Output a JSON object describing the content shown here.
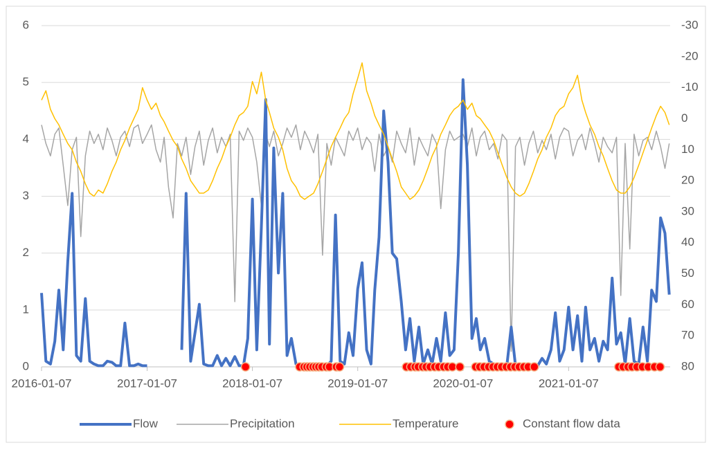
{
  "chart_data": {
    "type": "line",
    "x": [
      "2016-01-07",
      "2016-01-22",
      "2016-02-07",
      "2016-02-22",
      "2016-03-07",
      "2016-03-22",
      "2016-04-07",
      "2016-04-22",
      "2016-05-07",
      "2016-05-22",
      "2016-06-07",
      "2016-06-22",
      "2016-07-07",
      "2016-07-22",
      "2016-08-07",
      "2016-08-22",
      "2016-09-07",
      "2016-09-22",
      "2016-10-07",
      "2016-10-22",
      "2016-11-07",
      "2016-11-22",
      "2016-12-07",
      "2016-12-22",
      "2017-01-07",
      "2017-01-22",
      "2017-02-07",
      "2017-02-22",
      "2017-03-07",
      "2017-03-22",
      "2017-04-07",
      "2017-04-22",
      "2017-05-07",
      "2017-05-22",
      "2017-06-07",
      "2017-06-22",
      "2017-07-07",
      "2017-07-22",
      "2017-08-07",
      "2017-08-22",
      "2017-09-07",
      "2017-09-22",
      "2017-10-07",
      "2017-10-22",
      "2017-11-07",
      "2017-11-22",
      "2017-12-07",
      "2017-12-22",
      "2018-01-07",
      "2018-01-22",
      "2018-02-07",
      "2018-02-22",
      "2018-03-07",
      "2018-03-22",
      "2018-04-07",
      "2018-04-22",
      "2018-05-07",
      "2018-05-22",
      "2018-06-07",
      "2018-06-22",
      "2018-07-07",
      "2018-07-22",
      "2018-08-07",
      "2018-08-22",
      "2018-09-07",
      "2018-09-22",
      "2018-10-07",
      "2018-10-22",
      "2018-11-07",
      "2018-11-22",
      "2018-12-07",
      "2018-12-22",
      "2019-01-07",
      "2019-01-22",
      "2019-02-07",
      "2019-02-22",
      "2019-03-07",
      "2019-03-22",
      "2019-04-07",
      "2019-04-22",
      "2019-05-07",
      "2019-05-22",
      "2019-06-07",
      "2019-06-22",
      "2019-07-07",
      "2019-07-22",
      "2019-08-07",
      "2019-08-22",
      "2019-09-07",
      "2019-09-22",
      "2019-10-07",
      "2019-10-22",
      "2019-11-07",
      "2019-11-22",
      "2019-12-07",
      "2019-12-22",
      "2020-01-07",
      "2020-01-22",
      "2020-02-07",
      "2020-02-22",
      "2020-03-07",
      "2020-03-22",
      "2020-04-07",
      "2020-04-22",
      "2020-05-07",
      "2020-05-22",
      "2020-06-07",
      "2020-06-22",
      "2020-07-07",
      "2020-07-22",
      "2020-08-07",
      "2020-08-22",
      "2020-09-07",
      "2020-09-22",
      "2020-10-07",
      "2020-10-22",
      "2020-11-07",
      "2020-11-22",
      "2020-12-07",
      "2020-12-22",
      "2021-01-07",
      "2021-01-22",
      "2021-02-07",
      "2021-02-22",
      "2021-03-07",
      "2021-03-22",
      "2021-04-07",
      "2021-04-22",
      "2021-05-07",
      "2021-05-22",
      "2021-06-07",
      "2021-06-22",
      "2021-07-07",
      "2021-07-22",
      "2021-08-07",
      "2021-08-22",
      "2021-09-07",
      "2021-09-22",
      "2021-10-07",
      "2021-10-22",
      "2021-11-07",
      "2021-11-22",
      "2021-12-07",
      "2021-12-22"
    ],
    "series": [
      {
        "name": "Flow",
        "color": "#4472c4",
        "width": 4,
        "values": [
          1.3,
          0.1,
          0.05,
          0.45,
          1.35,
          0.3,
          1.85,
          3.05,
          0.2,
          0.1,
          1.2,
          0.1,
          0.05,
          0.02,
          0.02,
          0.1,
          0.08,
          0.02,
          0.02,
          0.77,
          0.02,
          0.02,
          0.05,
          0.02,
          0.02,
          null,
          null,
          null,
          null,
          null,
          null,
          null,
          0.3,
          3.05,
          0.1,
          0.6,
          1.1,
          0.05,
          0.02,
          0.02,
          0.2,
          0.02,
          0.15,
          0.02,
          0.18,
          0.02,
          0.02,
          0.5,
          2.95,
          0.3,
          2.45,
          4.7,
          0.4,
          3.85,
          1.65,
          3.05,
          0.2,
          0.5,
          0.05,
          0.02,
          0.02,
          0.02,
          0.02,
          0.02,
          0.02,
          0.02,
          0.1,
          2.67,
          0.1,
          0.05,
          0.6,
          0.2,
          1.37,
          1.83,
          0.3,
          0.05,
          1.35,
          2.28,
          4.5,
          3.6,
          2.0,
          1.9,
          1.15,
          0.3,
          0.85,
          0.1,
          0.7,
          0.05,
          0.3,
          0.05,
          0.5,
          0.1,
          0.95,
          0.2,
          0.3,
          2.0,
          5.05,
          3.55,
          0.5,
          0.85,
          0.3,
          0.5,
          0.1,
          0.05,
          0.02,
          0.05,
          0.02,
          0.7,
          0.02,
          0.02,
          0.02,
          0.02,
          0.05,
          0.02,
          0.15,
          0.05,
          0.3,
          0.95,
          0.1,
          0.3,
          1.05,
          0.3,
          0.9,
          0.1,
          1.05,
          0.3,
          0.5,
          0.1,
          0.45,
          0.3,
          1.56,
          0.4,
          0.6,
          0.05,
          0.85,
          0.1,
          0.05,
          0.7,
          0.1,
          1.35,
          1.15,
          2.62,
          2.35,
          1.27
        ]
      },
      {
        "name": "Precipitation",
        "color": "#a5a5a5",
        "width": 1.5,
        "axis": "y2",
        "values": [
          2,
          8,
          12,
          5,
          3,
          15,
          28,
          10,
          6,
          38,
          12,
          4,
          8,
          5,
          10,
          3,
          7,
          12,
          6,
          4,
          9,
          3,
          2,
          8,
          5,
          2,
          10,
          14,
          6,
          22,
          32,
          8,
          12,
          6,
          18,
          9,
          4,
          15,
          7,
          3,
          11,
          6,
          9,
          5,
          59,
          4,
          7,
          3,
          6,
          14,
          28,
          5,
          9,
          4,
          12,
          8,
          3,
          6,
          2,
          10,
          4,
          7,
          11,
          5,
          44,
          8,
          15,
          6,
          9,
          12,
          4,
          7,
          3,
          10,
          6,
          8,
          17,
          5,
          12,
          9,
          14,
          4,
          8,
          11,
          3,
          15,
          6,
          9,
          12,
          5,
          8,
          29,
          10,
          4,
          7,
          6,
          5,
          9,
          3,
          12,
          6,
          4,
          10,
          8,
          13,
          5,
          7,
          75,
          9,
          6,
          15,
          8,
          4,
          11,
          7,
          10,
          5,
          13,
          6,
          3,
          4,
          12,
          7,
          5,
          10,
          3,
          8,
          14,
          6,
          9,
          11,
          6,
          57,
          8,
          42,
          5,
          12,
          7,
          6,
          10,
          4,
          9,
          16,
          8
        ]
      },
      {
        "name": "Temperature",
        "color": "#ffc000",
        "width": 1.5,
        "axis": "y2",
        "values": [
          -6,
          -9,
          -3,
          0,
          2,
          5,
          8,
          10,
          14,
          17,
          21,
          24,
          25,
          23,
          24,
          21,
          17,
          14,
          10,
          7,
          3,
          0,
          -3,
          -10,
          -6,
          -3,
          -5,
          -1,
          1,
          4,
          7,
          9,
          13,
          16,
          20,
          22,
          24,
          24,
          23,
          20,
          16,
          13,
          9,
          6,
          2,
          -1,
          -2,
          -4,
          -12,
          -8,
          -15,
          -6,
          -2,
          3,
          6,
          10,
          16,
          20,
          22,
          25,
          26,
          25,
          24,
          21,
          17,
          13,
          9,
          6,
          3,
          0,
          -2,
          -8,
          -13,
          -18,
          -9,
          -5,
          -1,
          2,
          5,
          9,
          13,
          17,
          22,
          24,
          26,
          25,
          23,
          20,
          16,
          12,
          9,
          5,
          2,
          -1,
          -3,
          -4,
          -6,
          -3,
          -5,
          -1,
          0,
          2,
          4,
          7,
          11,
          15,
          19,
          22,
          24,
          25,
          24,
          21,
          17,
          13,
          10,
          6,
          3,
          -1,
          -3,
          -4,
          -8,
          -10,
          -14,
          -6,
          -2,
          2,
          5,
          9,
          12,
          16,
          20,
          23,
          24,
          24,
          22,
          19,
          15,
          11,
          7,
          3,
          -1,
          -4,
          -2,
          2
        ]
      },
      {
        "name": "Constant flow data",
        "type": "scatter",
        "color": "#ff0000",
        "edge": "#f4b183",
        "x": [
          "2017-12-14",
          "2018-06-20",
          "2018-07-05",
          "2018-07-15",
          "2018-07-25",
          "2018-08-05",
          "2018-08-15",
          "2018-08-25",
          "2018-09-05",
          "2018-09-20",
          "2018-10-01",
          "2018-10-25",
          "2018-11-05",
          "2019-06-25",
          "2019-07-10",
          "2019-07-25",
          "2019-08-05",
          "2019-08-20",
          "2019-09-01",
          "2019-09-15",
          "2019-10-01",
          "2019-10-15",
          "2019-11-01",
          "2019-11-15",
          "2019-12-01",
          "2019-12-27",
          "2020-02-20",
          "2020-03-05",
          "2020-03-20",
          "2020-04-05",
          "2020-04-20",
          "2020-05-05",
          "2020-05-20",
          "2020-06-05",
          "2020-06-20",
          "2020-07-05",
          "2020-07-20",
          "2020-08-05",
          "2020-08-20",
          "2020-09-10",
          "2021-06-30",
          "2021-07-15",
          "2021-08-01",
          "2021-08-15",
          "2021-09-01",
          "2021-09-20",
          "2021-10-10",
          "2021-11-01",
          "2021-11-20"
        ],
        "values": [
          0,
          0,
          0,
          0,
          0,
          0,
          0,
          0,
          0,
          0,
          0,
          0,
          0,
          0,
          0,
          0,
          0,
          0,
          0,
          0,
          0,
          0,
          0,
          0,
          0,
          0,
          0,
          0,
          0,
          0,
          0,
          0,
          0,
          0,
          0,
          0,
          0,
          0,
          0,
          0,
          0,
          0,
          0,
          0,
          0,
          0,
          0,
          0,
          0
        ]
      }
    ],
    "xlim": [
      "2016-01-07",
      "2021-12-25"
    ],
    "xticks": [
      "2016-01-07",
      "2017-01-07",
      "2018-01-07",
      "2019-01-07",
      "2020-01-07",
      "2021-01-07"
    ],
    "ylim": [
      0,
      6
    ],
    "yticks": [
      0,
      1,
      2,
      3,
      4,
      5,
      6
    ],
    "y2lim": [
      80,
      -30
    ],
    "y2ticks": [
      -30,
      -20,
      -10,
      0,
      10,
      20,
      30,
      40,
      50,
      60,
      70,
      80
    ],
    "grid": true
  }
}
